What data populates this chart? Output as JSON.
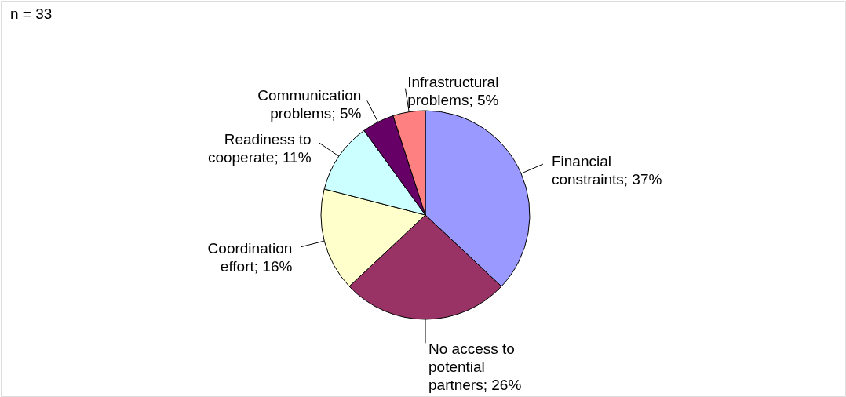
{
  "chart_data": {
    "type": "pie",
    "categories": [
      "Financial constraints",
      "No access to potential partners",
      "Coordination effort",
      "Readiness to cooperate",
      "Communication problems",
      "Infrastructural problems"
    ],
    "values": [
      37,
      26,
      16,
      11,
      5,
      5
    ],
    "value_labels": [
      "37%",
      "26%",
      "16%",
      "11%",
      "5%",
      "5%"
    ],
    "colors": [
      "#9999ff",
      "#993366",
      "#ffffcc",
      "#ccffff",
      "#660066",
      "#ff8080"
    ],
    "annotations": [
      "n = 33"
    ]
  }
}
